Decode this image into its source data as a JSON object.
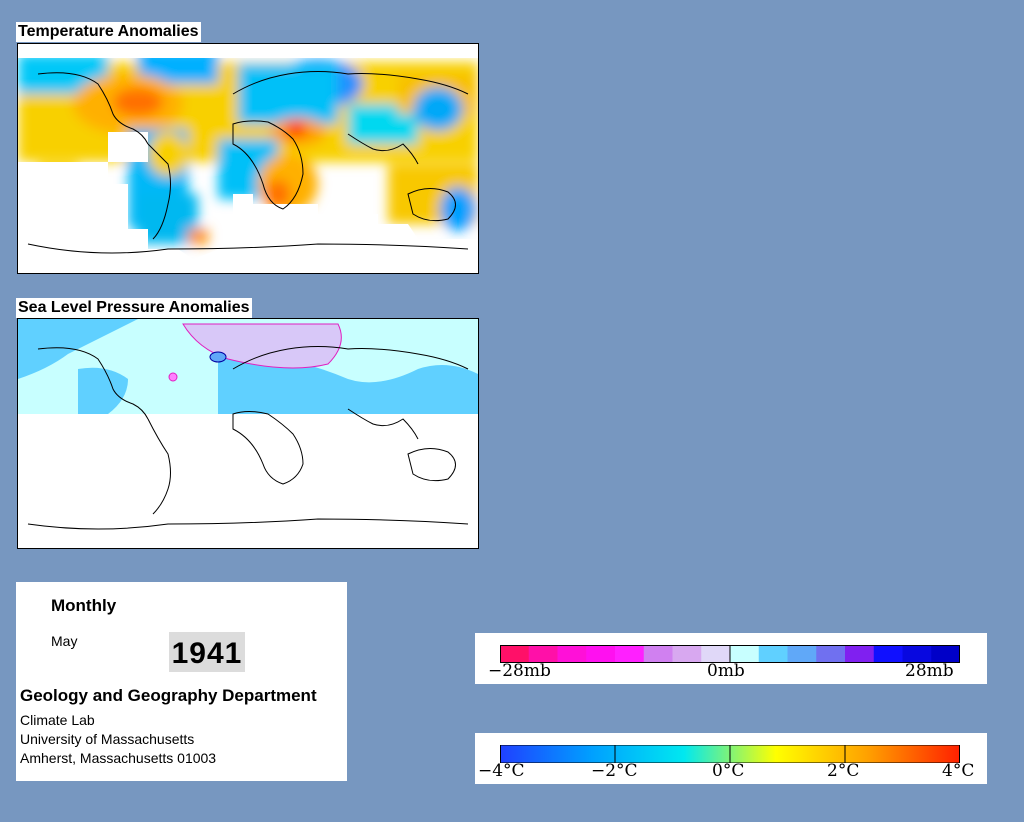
{
  "temperature_map": {
    "title": "Temperature Anomalies"
  },
  "pressure_map": {
    "title": "Sea Level Pressure Anomalies"
  },
  "info": {
    "period": "Monthly",
    "month": "May",
    "year": "1941",
    "department": "Geology and Geography Department",
    "lab": "Climate Lab",
    "university": "University of Massachusetts",
    "address": "Amherst, Massachusetts 01003"
  },
  "pressure_legend": {
    "labels": [
      "−28mb",
      "0mb",
      "28mb"
    ],
    "colors": [
      "#ff1068",
      "#ff10a8",
      "#ff10d8",
      "#ff10f0",
      "#ff20ff",
      "#d080f0",
      "#d8a8f0",
      "#e0d8f8",
      "#c8ffff",
      "#60d0ff",
      "#60a8f8",
      "#7070f0",
      "#8020f0",
      "#1010ff",
      "#0808e0",
      "#0000c8"
    ]
  },
  "temperature_legend": {
    "labels": [
      "−4°C",
      "−2°C",
      "0°C",
      "2°C",
      "4°C"
    ],
    "gradient": [
      "#2040ff",
      "#00a0ff",
      "#00e8f0",
      "#ffff00",
      "#ffa000",
      "#ff2000"
    ]
  },
  "chart_data": [
    {
      "type": "heatmap",
      "title": "Temperature Anomalies",
      "legend": {
        "min": -4,
        "max": 4,
        "unit": "°C",
        "ticks": [
          -4,
          -2,
          0,
          2,
          4
        ]
      }
    },
    {
      "type": "heatmap",
      "title": "Sea Level Pressure Anomalies",
      "legend": {
        "min": -28,
        "max": 28,
        "unit": "mb",
        "ticks": [
          -28,
          0,
          28
        ]
      }
    }
  ]
}
